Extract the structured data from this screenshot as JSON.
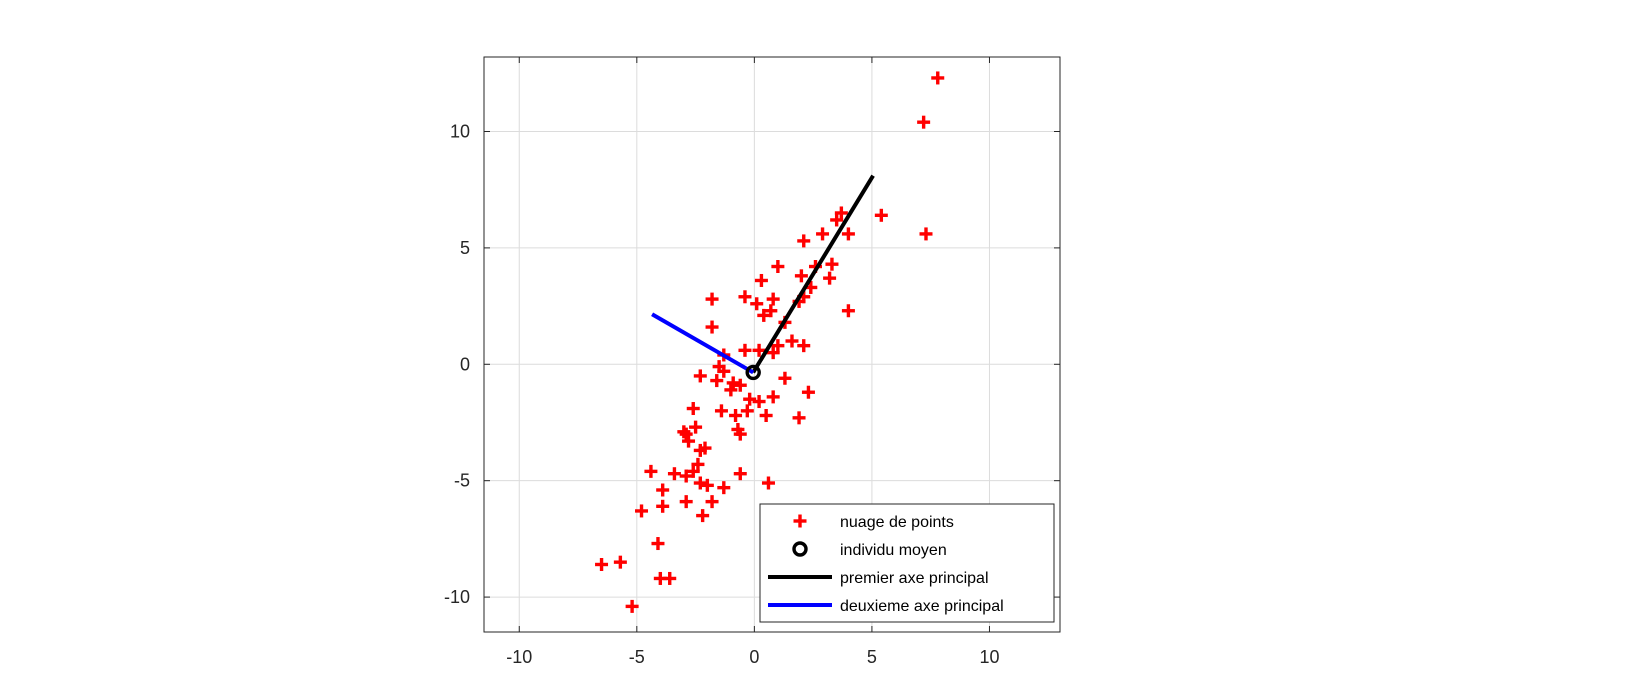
{
  "chart_data": {
    "type": "scatter",
    "title": "",
    "xlabel": "",
    "ylabel": "",
    "xlim": [
      -11.5,
      13
    ],
    "ylim": [
      -11.5,
      13.2
    ],
    "grid": true,
    "x_ticks": [
      -10,
      -5,
      0,
      5,
      10
    ],
    "y_ticks": [
      -10,
      -5,
      0,
      5,
      10
    ],
    "x_tick_labels": [
      "-10",
      "-5",
      "0",
      "5",
      "10"
    ],
    "y_tick_labels": [
      "-10",
      "-5",
      "0",
      "5",
      "10"
    ],
    "legend_position": "bottom-right",
    "series": [
      {
        "name": "nuage de points",
        "kind": "marker-plus",
        "color": "#ff0000",
        "points": [
          [
            7.8,
            12.3
          ],
          [
            7.2,
            10.4
          ],
          [
            7.3,
            5.6
          ],
          [
            5.4,
            6.4
          ],
          [
            4.0,
            5.6
          ],
          [
            3.7,
            6.5
          ],
          [
            3.5,
            6.2
          ],
          [
            3.3,
            4.3
          ],
          [
            3.2,
            3.7
          ],
          [
            2.9,
            5.6
          ],
          [
            2.6,
            4.2
          ],
          [
            2.4,
            3.3
          ],
          [
            2.1,
            5.3
          ],
          [
            2.0,
            3.8
          ],
          [
            2.1,
            2.9
          ],
          [
            1.9,
            2.7
          ],
          [
            4.0,
            2.3
          ],
          [
            2.1,
            0.8
          ],
          [
            1.6,
            1.0
          ],
          [
            1.3,
            1.8
          ],
          [
            0.8,
            2.8
          ],
          [
            0.7,
            2.3
          ],
          [
            1.0,
            4.2
          ],
          [
            0.3,
            3.6
          ],
          [
            0.1,
            2.6
          ],
          [
            0.4,
            2.1
          ],
          [
            -0.4,
            2.9
          ],
          [
            -1.8,
            2.8
          ],
          [
            -1.8,
            1.6
          ],
          [
            1.0,
            0.8
          ],
          [
            0.8,
            0.5
          ],
          [
            1.3,
            -0.6
          ],
          [
            2.3,
            -1.2
          ],
          [
            0.8,
            -1.4
          ],
          [
            0.5,
            -2.2
          ],
          [
            1.9,
            -2.3
          ],
          [
            0.2,
            -1.6
          ],
          [
            -0.2,
            -1.5
          ],
          [
            -0.3,
            -2.0
          ],
          [
            -0.6,
            -0.9
          ],
          [
            -0.9,
            -0.8
          ],
          [
            -1.0,
            -1.1
          ],
          [
            -1.3,
            -0.3
          ],
          [
            -1.3,
            0.4
          ],
          [
            -1.5,
            -0.1
          ],
          [
            -1.6,
            -0.7
          ],
          [
            -2.3,
            -0.5
          ],
          [
            -0.4,
            0.6
          ],
          [
            0.2,
            0.6
          ],
          [
            -0.7,
            -2.8
          ],
          [
            -0.8,
            -2.2
          ],
          [
            -0.6,
            -3.0
          ],
          [
            -1.4,
            -2.0
          ],
          [
            -2.6,
            -1.9
          ],
          [
            -2.5,
            -2.7
          ],
          [
            -2.9,
            -3.0
          ],
          [
            -2.8,
            -3.3
          ],
          [
            -3.0,
            -2.9
          ],
          [
            -2.1,
            -3.6
          ],
          [
            -2.3,
            -3.7
          ],
          [
            -2.4,
            -4.3
          ],
          [
            -2.9,
            -4.8
          ],
          [
            -2.6,
            -4.6
          ],
          [
            -2.3,
            -5.1
          ],
          [
            -2.0,
            -5.2
          ],
          [
            -1.3,
            -5.3
          ],
          [
            -0.6,
            -4.7
          ],
          [
            0.6,
            -5.1
          ],
          [
            -1.8,
            -5.9
          ],
          [
            -2.2,
            -6.5
          ],
          [
            -3.4,
            -4.7
          ],
          [
            -2.9,
            -5.9
          ],
          [
            -3.9,
            -5.4
          ],
          [
            -3.9,
            -6.1
          ],
          [
            -4.4,
            -4.6
          ],
          [
            -4.8,
            -6.3
          ],
          [
            -4.1,
            -7.7
          ],
          [
            -5.7,
            -8.5
          ],
          [
            -6.5,
            -8.6
          ],
          [
            -4.0,
            -9.2
          ],
          [
            -3.6,
            -9.2
          ],
          [
            -5.2,
            -10.4
          ]
        ]
      },
      {
        "name": "individu moyen",
        "kind": "marker-circle",
        "color": "#000000",
        "points": [
          [
            -0.05,
            -0.35
          ]
        ]
      },
      {
        "name": "premier axe principal",
        "kind": "line",
        "color": "#000000",
        "points": [
          [
            -0.05,
            -0.35
          ],
          [
            5.05,
            8.1
          ]
        ]
      },
      {
        "name": "deuxieme axe principal",
        "kind": "line",
        "color": "#0000ff",
        "points": [
          [
            -0.05,
            -0.35
          ],
          [
            -4.35,
            2.15
          ]
        ]
      }
    ]
  }
}
